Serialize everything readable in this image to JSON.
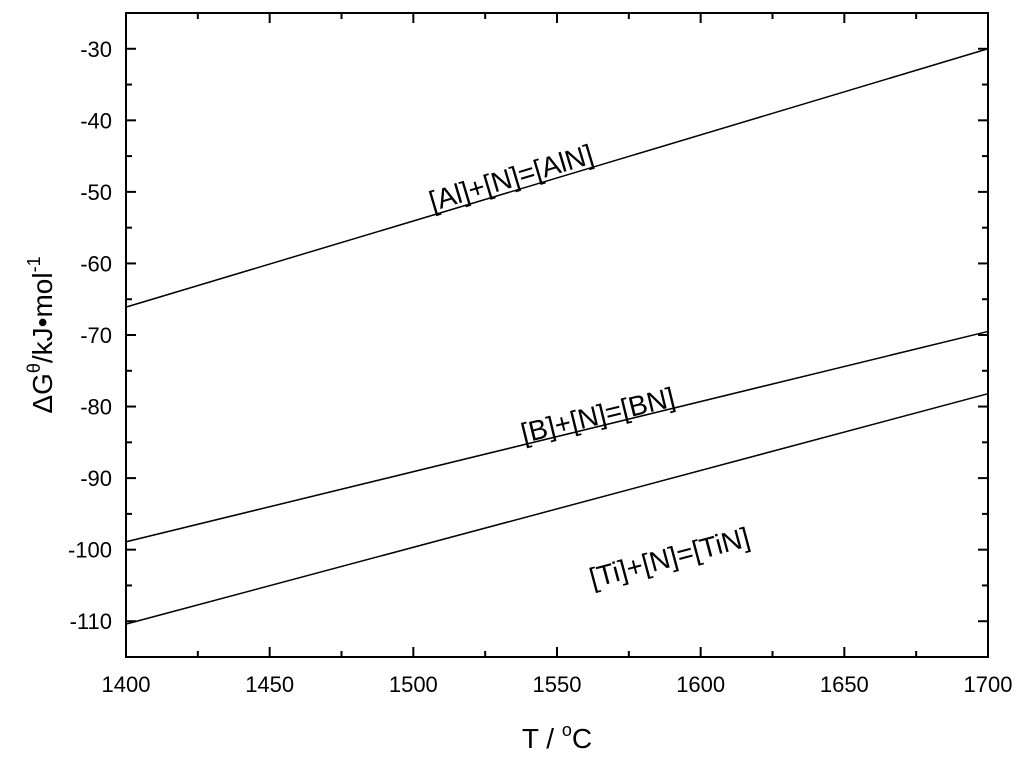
{
  "chart_data": {
    "type": "line",
    "xlabel": {
      "prefix": "T / ",
      "sup": "o",
      "suffix": "C"
    },
    "ylabel": {
      "prefix": "ΔG",
      "sup1": "θ",
      "middle": "/kJ•mol",
      "sup2": "-1"
    },
    "xlim": [
      1400,
      1700
    ],
    "ylim": [
      -115,
      -25
    ],
    "x_ticks": [
      1400,
      1450,
      1500,
      1550,
      1600,
      1650,
      1700
    ],
    "y_ticks": [
      -110,
      -100,
      -90,
      -80,
      -70,
      -60,
      -50,
      -40,
      -30
    ],
    "grid": false,
    "series": [
      {
        "name": "[Al]+[N]=[AlN]",
        "x": [
          1400,
          1700
        ],
        "y": [
          -66.1,
          -30.0
        ],
        "label_at": {
          "x": 1535,
          "y": -49.3
        }
      },
      {
        "name": "[B]+[N]=[BN]",
        "x": [
          1400,
          1700
        ],
        "y": [
          -98.9,
          -69.5
        ],
        "label_at": {
          "x": 1565,
          "y": -82.5
        }
      },
      {
        "name": "[Ti]+[N]=[TiN]",
        "x": [
          1400,
          1700
        ],
        "y": [
          -110.4,
          -78.2
        ],
        "label_at": {
          "x": 1590,
          "y": -102.4
        }
      }
    ]
  }
}
